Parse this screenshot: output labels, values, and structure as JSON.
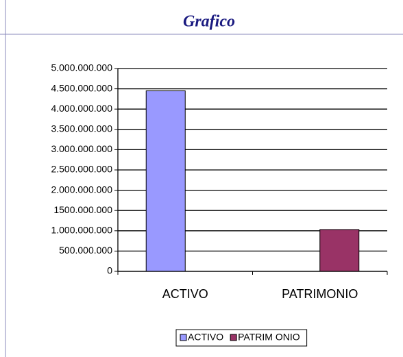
{
  "chart_data": {
    "type": "bar",
    "title": "Grafico",
    "categories": [
      "ACTIVO",
      "PATRIMONIO"
    ],
    "series": [
      {
        "name": "ACTIVO",
        "color": "#9999ff",
        "values": [
          4450000000,
          null
        ]
      },
      {
        "name": "PATRIM ONIO",
        "color": "#993366",
        "values": [
          null,
          1030000000
        ]
      }
    ],
    "ylim": [
      0,
      5000000000
    ],
    "yticks": [
      0,
      {
        "value": 500000000,
        "label": "500.000.000"
      },
      {
        "value": 1000000000,
        "label": "1.000.000.000"
      },
      {
        "value": 1500000000,
        "label": "1500.000.000"
      },
      {
        "value": 2000000000,
        "label": "2.000.000.000"
      },
      {
        "value": 2500000000,
        "label": "2.500.000.000"
      },
      {
        "value": 3000000000,
        "label": "3.000.000.000"
      },
      {
        "value": 3500000000,
        "label": "3.500.000.000"
      },
      {
        "value": 4000000000,
        "label": "4.000.000.000"
      },
      {
        "value": 4500000000,
        "label": "4.500.000.000"
      },
      {
        "value": 5000000000,
        "label": "5.000.000.000"
      }
    ],
    "grid": true,
    "legend": "bottom"
  }
}
